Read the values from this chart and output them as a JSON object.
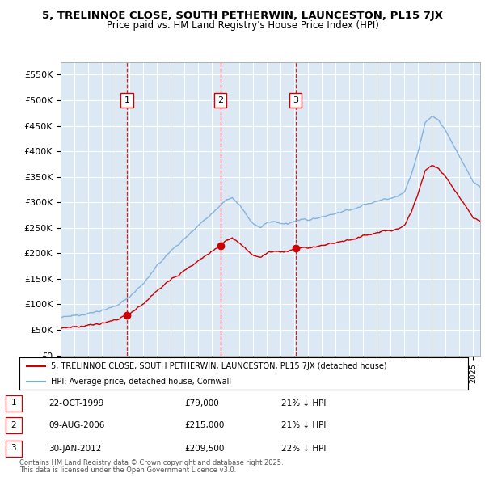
{
  "title1": "5, TRELINNOE CLOSE, SOUTH PETHERWIN, LAUNCESTON, PL15 7JX",
  "title2": "Price paid vs. HM Land Registry's House Price Index (HPI)",
  "yticks": [
    0,
    50000,
    100000,
    150000,
    200000,
    250000,
    300000,
    350000,
    400000,
    450000,
    500000,
    550000
  ],
  "ytick_labels": [
    "£0",
    "£50K",
    "£100K",
    "£150K",
    "£200K",
    "£250K",
    "£300K",
    "£350K",
    "£400K",
    "£450K",
    "£500K",
    "£550K"
  ],
  "ylim": [
    0,
    575000
  ],
  "xlim_start": 1995.0,
  "xlim_end": 2025.5,
  "bg_color": "#dce9f5",
  "grid_color": "#ffffff",
  "sale_color": "#cc0000",
  "hpi_color": "#7aaddb",
  "transaction_year_floats": [
    1999.81,
    2006.61,
    2012.08
  ],
  "transaction_prices": [
    79000,
    215000,
    209500
  ],
  "transaction_labels": [
    "1",
    "2",
    "3"
  ],
  "transaction_pct": [
    "21% ↓ HPI",
    "21% ↓ HPI",
    "22% ↓ HPI"
  ],
  "transaction_date_strs": [
    "22-OCT-1999",
    "09-AUG-2006",
    "30-JAN-2012"
  ],
  "transaction_price_strs": [
    "£79,000",
    "£215,000",
    "£209,500"
  ],
  "legend_sale_label": "5, TRELINNOE CLOSE, SOUTH PETHERWIN, LAUNCESTON, PL15 7JX (detached house)",
  "legend_hpi_label": "HPI: Average price, detached house, Cornwall",
  "footer1": "Contains HM Land Registry data © Crown copyright and database right 2025.",
  "footer2": "This data is licensed under the Open Government Licence v3.0."
}
